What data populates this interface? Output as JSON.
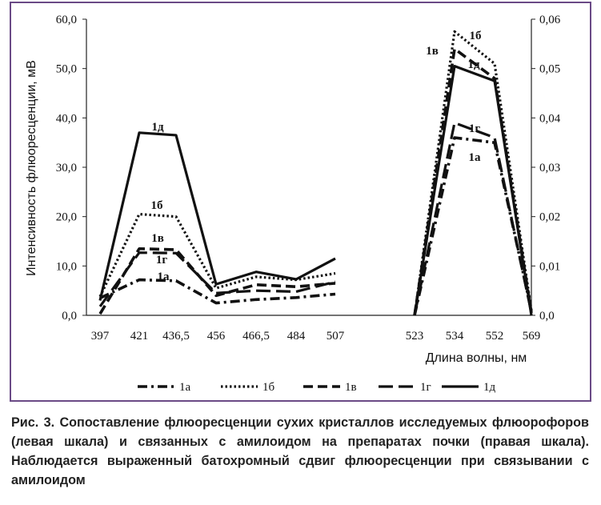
{
  "chart_data": {
    "type": "line",
    "ylabel_left": "Интенсивность флюоресценции, мВ",
    "ylabel_right": "",
    "xlabel": "Длина волны, нм",
    "left_axis": {
      "ylim": [
        0,
        60
      ],
      "ticks": [
        "0,0",
        "10,0",
        "20,0",
        "30,0",
        "40,0",
        "50,0",
        "60,0"
      ],
      "tick_values": [
        0,
        10,
        20,
        30,
        40,
        50,
        60
      ]
    },
    "right_axis": {
      "ylim": [
        0,
        0.06
      ],
      "ticks": [
        "0,0",
        "0,01",
        "0,02",
        "0,03",
        "0,04",
        "0,05",
        "0,06"
      ],
      "tick_values": [
        0,
        0.01,
        0.02,
        0.03,
        0.04,
        0.05,
        0.06
      ]
    },
    "left_categories": [
      "397",
      "421",
      "436,5",
      "456",
      "466,5",
      "484",
      "507"
    ],
    "right_categories": [
      "523",
      "534",
      "552",
      "569"
    ],
    "grid": false,
    "legend_placement": "bottom",
    "series": [
      {
        "name": "1а",
        "style": "dashdot",
        "left_values": [
          3.5,
          7.2,
          7.0,
          2.5,
          3.2,
          3.6,
          4.3
        ],
        "right_values": [
          0.0,
          0.036,
          0.035,
          0.001
        ]
      },
      {
        "name": "1б",
        "style": "dotted",
        "left_values": [
          3.8,
          20.5,
          20.0,
          5.5,
          7.8,
          7.2,
          8.5
        ],
        "right_values": [
          0.0,
          0.0575,
          0.051,
          0.001
        ]
      },
      {
        "name": "1в",
        "style": "dashdash",
        "left_values": [
          0.3,
          13.5,
          13.3,
          4.0,
          6.2,
          5.8,
          6.5
        ],
        "right_values": [
          0.0,
          0.054,
          0.048,
          0.0005
        ]
      },
      {
        "name": "1г",
        "style": "dashed",
        "left_values": [
          1.8,
          12.7,
          12.6,
          4.5,
          5.0,
          4.8,
          6.8
        ],
        "right_values": [
          0.0,
          0.039,
          0.036,
          0.0005
        ]
      },
      {
        "name": "1д",
        "style": "solid",
        "left_values": [
          3.0,
          37.0,
          36.5,
          6.3,
          8.8,
          7.3,
          11.5
        ],
        "right_values": [
          0.0,
          0.0505,
          0.0475,
          0.0
        ]
      }
    ],
    "annotations": [
      "1д",
      "1б",
      "1в",
      "1г",
      "1а",
      "1б",
      "1в",
      "1д",
      "1г",
      "1а"
    ]
  },
  "caption": "Рис. 3. Сопоставление флюоресценции сухих кристаллов исследуемых флюорофоров (левая шкала) и связанных с амилоидом на препаратах почки (правая шкала). Наблюдается выраженный батохромный сдвиг флюоресценции при связывании с амилоидом"
}
